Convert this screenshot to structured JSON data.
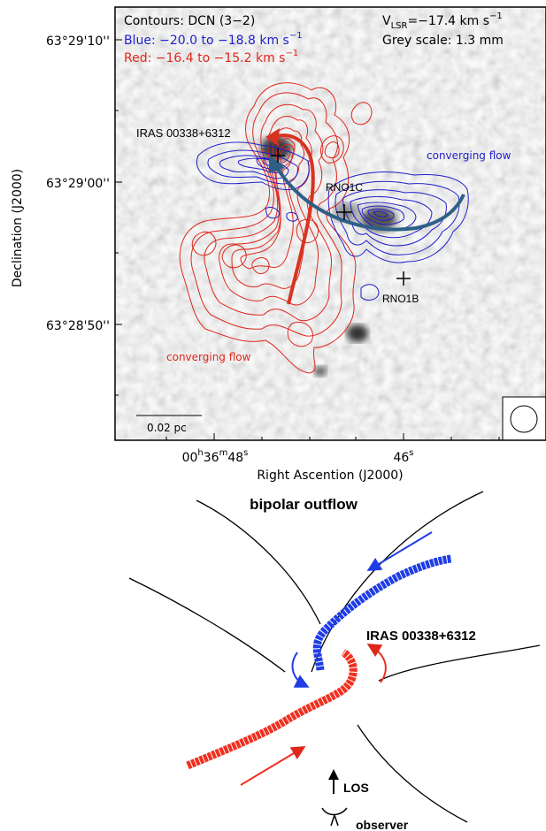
{
  "top_panel": {
    "legend_line1": "Contours: DCN (3−2)",
    "legend_blue_main": "Blue: −20.0 to −18.8 km s",
    "legend_red_main": "Red: −16.4 to −15.2 km s",
    "legend_exponent": "−1",
    "vlsr_prefix": "V",
    "vlsr_sub": "LSR",
    "vlsr_value": "=−17.4 km s",
    "grey_scale": "Grey scale: 1.3 mm",
    "labels": {
      "iras": "IRAS 00338+6312",
      "rno1c": "RNO1C",
      "rno1b": "RNO1B",
      "converging_blue": "converging flow",
      "converging_red": "converging flow"
    },
    "scalebar": "0.02 pc",
    "y_ticks": [
      "63°29'10''",
      "63°29'00''",
      "63°28'50''"
    ],
    "ylabel": "Declination (J2000)",
    "x_tick_1": {
      "h": "00",
      "m": "36",
      "s": "48"
    },
    "x_tick_2": {
      "s": "46"
    },
    "xlabel": "Right Ascention (J2000)",
    "colors": {
      "blue": "#1f1fcc",
      "red": "#e0261a",
      "arrow_red": "#d8331f",
      "arrow_blue": "#2e5f86"
    }
  },
  "bottom_panel": {
    "title": "bipolar outflow",
    "iras": "IRAS 00338+6312",
    "los": "LOS",
    "observer": "observer",
    "colors": {
      "blue": "#1f3de6",
      "red": "#f03020"
    }
  }
}
